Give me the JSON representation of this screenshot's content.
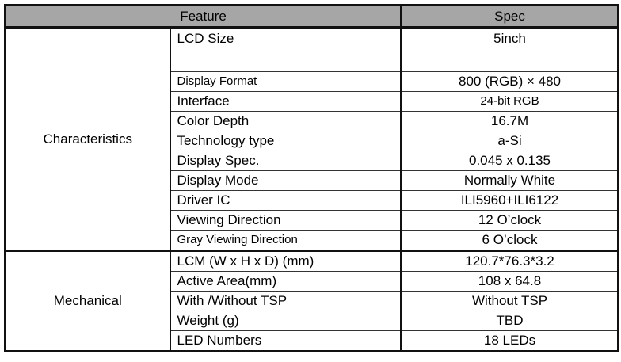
{
  "header": {
    "feature": "Feature",
    "spec": "Spec",
    "background": "#a6a6a6"
  },
  "groups": [
    {
      "name": "Characteristics",
      "rows": [
        {
          "feature": "LCD Size",
          "spec": "5inch"
        },
        {
          "feature": "Display Format",
          "spec": "800 (RGB) × 480"
        },
        {
          "feature": "Interface",
          "spec": "24-bit RGB"
        },
        {
          "feature": "Color Depth",
          "spec": "16.7M"
        },
        {
          "feature": "Technology type",
          "spec": "a-Si"
        },
        {
          "feature": "Display Spec.",
          "spec": "0.045 x 0.135"
        },
        {
          "feature": "Display Mode",
          "spec": "Normally White"
        },
        {
          "feature": "Driver IC",
          "spec": "ILI5960+ILI6122"
        },
        {
          "feature": "Viewing Direction",
          "spec": "12 O’clock"
        },
        {
          "feature": "Gray Viewing Direction",
          "spec": "6 O’clock"
        }
      ]
    },
    {
      "name": "Mechanical",
      "rows": [
        {
          "feature": "LCM (W x H x D) (mm)",
          "spec": "120.7*76.3*3.2"
        },
        {
          "feature": "Active Area(mm)",
          "spec": "108 x 64.8"
        },
        {
          "feature": "With /Without TSP",
          "spec": "Without TSP"
        },
        {
          "feature": "Weight (g)",
          "spec": "TBD"
        },
        {
          "feature": "LED Numbers",
          "spec": "18 LEDs"
        }
      ]
    }
  ]
}
